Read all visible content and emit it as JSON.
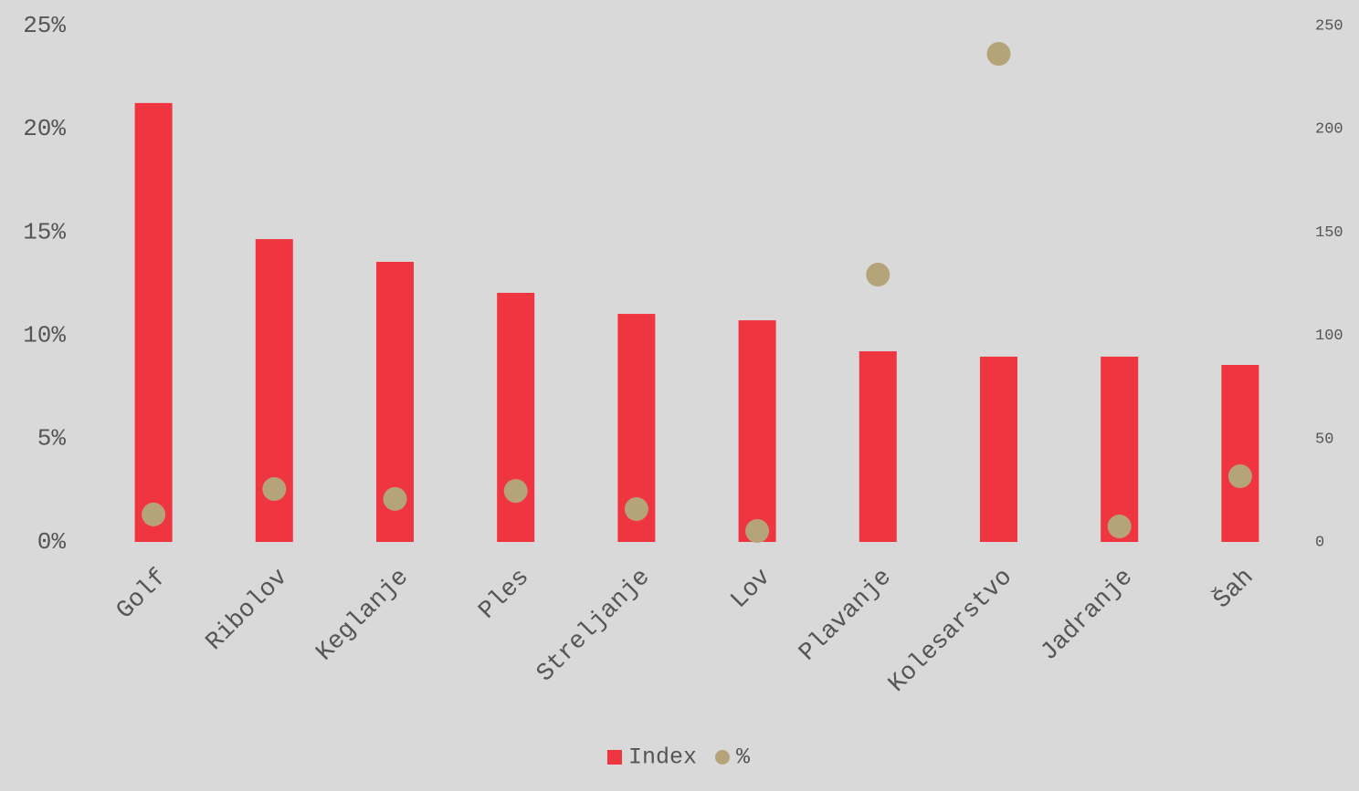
{
  "chart_data": {
    "type": "bar",
    "categories": [
      "Golf",
      "Ribolov",
      "Keglanje",
      "Ples",
      "Streljanje",
      "Lov",
      "Plavanje",
      "Kolesarstvo",
      "Jadranje",
      "Šah"
    ],
    "series": [
      {
        "name": "Index",
        "type": "bar",
        "axis": "y2",
        "color": "#ef3640",
        "values": [
          212.5,
          146.6,
          135.6,
          120.6,
          110.4,
          107.3,
          92.3,
          89.7,
          89.7,
          85.7
        ]
      },
      {
        "name": "%",
        "type": "scatter",
        "color": "#b5a47a",
        "values": [
          1.33,
          2.56,
          2.08,
          2.47,
          1.59,
          0.53,
          12.94,
          23.63,
          0.75,
          3.18
        ]
      }
    ],
    "ylim": [
      0,
      25
    ],
    "yticks": [
      {
        "value": 0,
        "label": "0%"
      },
      {
        "value": 5,
        "label": "5%"
      },
      {
        "value": 10,
        "label": "10%"
      },
      {
        "value": 15,
        "label": "15%"
      },
      {
        "value": 20,
        "label": "20%"
      },
      {
        "value": 25,
        "label": "25%"
      }
    ],
    "y2lim": [
      0,
      250
    ],
    "y2ticks": [
      0,
      50,
      100,
      150,
      200,
      250
    ],
    "grid": false,
    "legend": "bottom"
  }
}
